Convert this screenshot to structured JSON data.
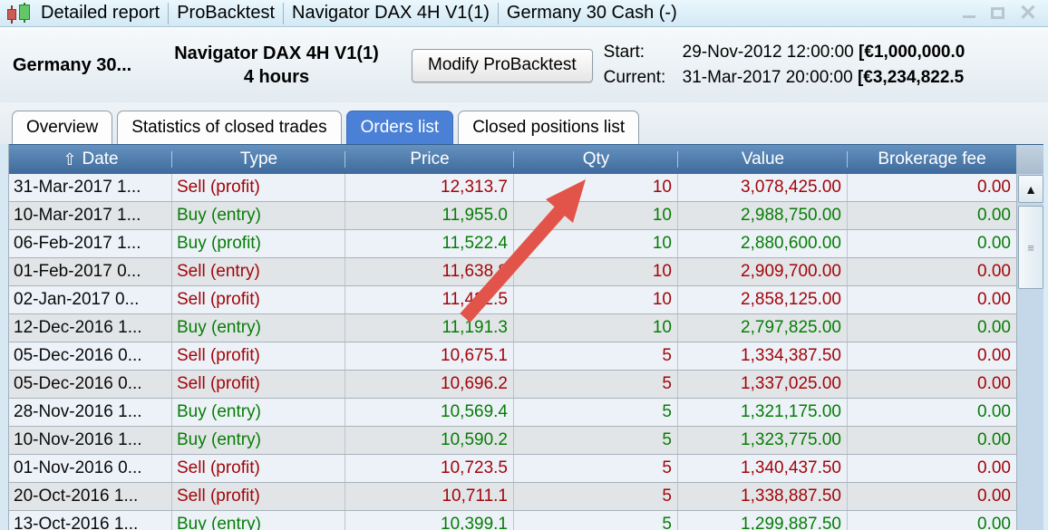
{
  "window": {
    "title_segments": [
      "Detailed report",
      "ProBacktest",
      "Navigator DAX 4H V1(1)",
      "Germany 30 Cash (-)"
    ]
  },
  "icons": {
    "close": "✕",
    "sort_up": "⇧",
    "scroll_up": "▲",
    "thumb_grip": "≡",
    "app_icon": "candlestick-chart"
  },
  "header": {
    "instrument": "Germany 30...",
    "system_name": "Navigator DAX 4H V1(1)",
    "timeframe": "4 hours",
    "modify_button": "Modify ProBacktest",
    "start_label": "Start:",
    "start_datetime": "29-Nov-2012 12:00:00",
    "start_amount": "[€1,000,000.0",
    "current_label": "Current:",
    "current_datetime": "31-Mar-2017 20:00:00",
    "current_amount": "[€3,234,822.5"
  },
  "tabs": [
    {
      "label": "Overview",
      "active": false
    },
    {
      "label": "Statistics of closed trades",
      "active": false
    },
    {
      "label": "Orders list",
      "active": true
    },
    {
      "label": "Closed positions list",
      "active": false
    }
  ],
  "orders_table": {
    "columns": [
      "Date",
      "Type",
      "Price",
      "Qty",
      "Value",
      "Brokerage fee"
    ],
    "rows": [
      {
        "date": "31-Mar-2017 1...",
        "type": "Sell (profit)",
        "price": "12,313.7",
        "qty": "10",
        "value": "3,078,425.00",
        "fee": "0.00",
        "side": "sell"
      },
      {
        "date": "10-Mar-2017 1...",
        "type": "Buy (entry)",
        "price": "11,955.0",
        "qty": "10",
        "value": "2,988,750.00",
        "fee": "0.00",
        "side": "buy"
      },
      {
        "date": "06-Feb-2017 1...",
        "type": "Buy (profit)",
        "price": "11,522.4",
        "qty": "10",
        "value": "2,880,600.00",
        "fee": "0.00",
        "side": "buy"
      },
      {
        "date": "01-Feb-2017 0...",
        "type": "Sell (entry)",
        "price": "11,638.8",
        "qty": "10",
        "value": "2,909,700.00",
        "fee": "0.00",
        "side": "sell"
      },
      {
        "date": "02-Jan-2017 0...",
        "type": "Sell (profit)",
        "price": "11,432.5",
        "qty": "10",
        "value": "2,858,125.00",
        "fee": "0.00",
        "side": "sell"
      },
      {
        "date": "12-Dec-2016 1...",
        "type": "Buy (entry)",
        "price": "11,191.3",
        "qty": "10",
        "value": "2,797,825.00",
        "fee": "0.00",
        "side": "buy"
      },
      {
        "date": "05-Dec-2016 0...",
        "type": "Sell (profit)",
        "price": "10,675.1",
        "qty": "5",
        "value": "1,334,387.50",
        "fee": "0.00",
        "side": "sell"
      },
      {
        "date": "05-Dec-2016 0...",
        "type": "Sell (profit)",
        "price": "10,696.2",
        "qty": "5",
        "value": "1,337,025.00",
        "fee": "0.00",
        "side": "sell"
      },
      {
        "date": "28-Nov-2016 1...",
        "type": "Buy (entry)",
        "price": "10,569.4",
        "qty": "5",
        "value": "1,321,175.00",
        "fee": "0.00",
        "side": "buy"
      },
      {
        "date": "10-Nov-2016 1...",
        "type": "Buy (entry)",
        "price": "10,590.2",
        "qty": "5",
        "value": "1,323,775.00",
        "fee": "0.00",
        "side": "buy"
      },
      {
        "date": "01-Nov-2016 0...",
        "type": "Sell (profit)",
        "price": "10,723.5",
        "qty": "5",
        "value": "1,340,437.50",
        "fee": "0.00",
        "side": "sell"
      },
      {
        "date": "20-Oct-2016 1...",
        "type": "Sell (profit)",
        "price": "10,711.1",
        "qty": "5",
        "value": "1,338,887.50",
        "fee": "0.00",
        "side": "sell"
      },
      {
        "date": "13-Oct-2016 1...",
        "type": "Buy (entry)",
        "price": "10,399.1",
        "qty": "5",
        "value": "1,299,887.50",
        "fee": "0.00",
        "side": "buy"
      }
    ]
  },
  "annotation": {
    "arrow_color": "#e2544a"
  },
  "colors": {
    "sell_text": "#a30509",
    "buy_text": "#067d06",
    "active_tab": "#4a80d5",
    "table_header_top": "#6591bf",
    "table_header_bottom": "#3f6b9c",
    "row_odd": "#ecf2f8",
    "row_even": "#e2e5e7"
  }
}
